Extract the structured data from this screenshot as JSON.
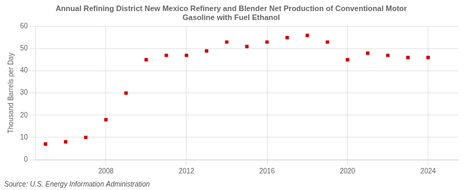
{
  "chart_data": {
    "type": "scatter",
    "title": "Annual Refining District New Mexico Refinery and Blender Net Production of Conventional Motor\nGasoline with Fuel Ethanol",
    "ylabel": "Thousand Barrels per Day",
    "annotation": "Source: U.S. Energy Information Administration",
    "x": [
      2005,
      2006,
      2007,
      2008,
      2009,
      2010,
      2011,
      2012,
      2013,
      2014,
      2015,
      2016,
      2017,
      2018,
      2019,
      2020,
      2021,
      2022,
      2023,
      2024
    ],
    "values": [
      7,
      8,
      10,
      18,
      30,
      45,
      47,
      47,
      49,
      53,
      51,
      53,
      55,
      56,
      53,
      45,
      48,
      47,
      46,
      46
    ],
    "color": "#cc0000",
    "marker": "square",
    "xlim": [
      2004.5,
      2025.5
    ],
    "xticks": [
      2008,
      2012,
      2016,
      2020,
      2024
    ],
    "ylim": [
      0,
      60
    ],
    "yticks": [
      0,
      10,
      20,
      30,
      40,
      50,
      60
    ],
    "grid": true
  }
}
